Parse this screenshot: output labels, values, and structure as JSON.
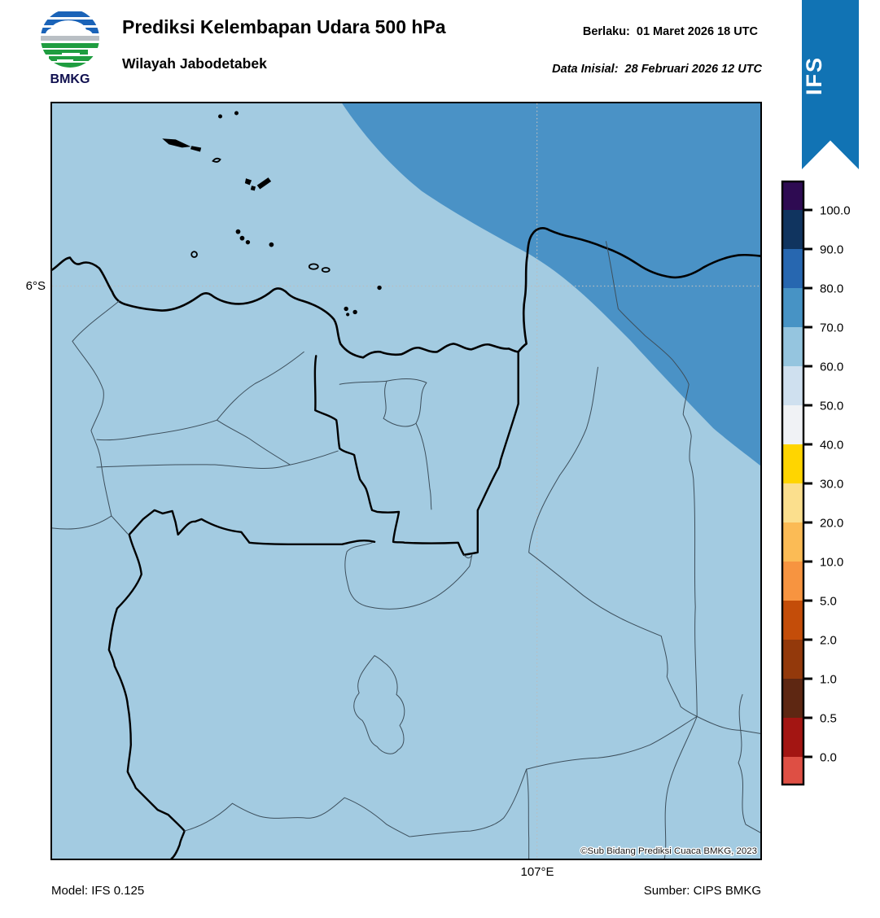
{
  "header": {
    "title": "Prediksi Kelembapan Udara 500 hPa",
    "subtitle": "Wilayah Jabodetabek",
    "valid_label": "Berlaku:",
    "valid_value": "01 Maret 2026 18 UTC",
    "init_label": "Data Inisial:",
    "init_value": "28 Februari 2026 12 UTC",
    "logo_caption": "BMKG",
    "ribbon_label": "IFS",
    "ribbon_color": "#1173b4"
  },
  "axes": {
    "lat_tick": "6°S",
    "lon_tick": "107°E"
  },
  "map": {
    "copyright": "©Sub Bidang Prediksi Cuaca BMKG, 2023",
    "field_colors": {
      "band_60_70": "#a3cbe1",
      "band_70_80": "#4a92c6"
    }
  },
  "colorbar": {
    "tick_labels": [
      "100.0",
      "90.0",
      "80.0",
      "70.0",
      "60.0",
      "50.0",
      "40.0",
      "30.0",
      "20.0",
      "10.0",
      "5.0",
      "2.0",
      "1.0",
      "0.5",
      "0.0"
    ],
    "segment_colors": [
      "#2e0b52",
      "#10345f",
      "#2767b0",
      "#4793c5",
      "#95c5df",
      "#cfe0ef",
      "#f0f2f5",
      "#ffd500",
      "#fbdf8d",
      "#fbbb55",
      "#f79440",
      "#c44d09",
      "#93390b",
      "#5e2712",
      "#a31512",
      "#de4f44"
    ]
  },
  "footer": {
    "model": "Model: IFS 0.125",
    "source": "Sumber: CIPS BMKG"
  },
  "chart_data": {
    "type": "heatmap",
    "title": "Prediksi Kelembapan Udara 500 hPa",
    "region": "Wilayah Jabodetabek",
    "valid_time": "01 Maret 2026 18 UTC",
    "initial_time": "28 Februari 2026 12 UTC",
    "model": "IFS 0.125",
    "source": "CIPS BMKG",
    "scale_ticks": [
      100.0,
      90.0,
      80.0,
      70.0,
      60.0,
      50.0,
      40.0,
      30.0,
      20.0,
      10.0,
      5.0,
      2.0,
      1.0,
      0.5,
      0.0
    ],
    "field_regions": [
      {
        "band": "60-70",
        "color": "#a3cbe1",
        "coverage": "most of the map domain"
      },
      {
        "band": "70-80",
        "color": "#4a92c6",
        "coverage": "northeast quadrant, diagonal boundary from top edge to right edge"
      }
    ],
    "lat_gridline": "6°S",
    "lon_gridline": "107°E"
  }
}
